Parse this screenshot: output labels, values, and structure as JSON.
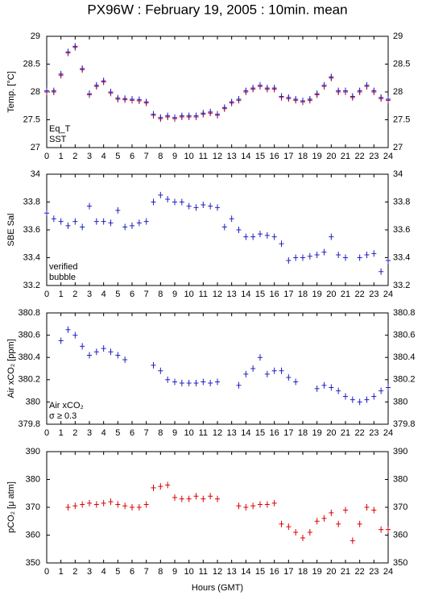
{
  "chart_data": [
    {
      "type": "scatter",
      "title": "PX96W : February 19, 2005 : 10min. mean",
      "ylabel": "Temp. [°C]",
      "x": [
        0,
        0.5,
        1,
        1.5,
        2,
        2.5,
        3,
        3.5,
        4,
        4.5,
        5,
        5.5,
        6,
        6.5,
        7,
        7.5,
        8,
        8.5,
        9,
        9.5,
        10,
        10.5,
        11,
        11.5,
        12,
        12.5,
        13,
        13.5,
        14,
        14.5,
        15,
        15.5,
        16,
        16.5,
        17,
        17.5,
        18,
        18.5,
        19,
        19.5,
        20,
        20.5,
        21,
        21.5,
        22,
        22.5,
        23,
        23.5,
        24
      ],
      "xlim": [
        0,
        24
      ],
      "xticks": [
        0,
        1,
        2,
        3,
        4,
        5,
        6,
        7,
        8,
        9,
        10,
        11,
        12,
        13,
        14,
        15,
        16,
        17,
        18,
        19,
        20,
        21,
        22,
        23,
        24
      ],
      "ylim": [
        27,
        29
      ],
      "yticks": [
        27,
        27.5,
        28,
        28.5,
        29
      ],
      "series": [
        {
          "name": "Eq_T",
          "color": "#e00000",
          "values": [
            28.0,
            28.0,
            28.3,
            28.7,
            28.8,
            28.4,
            27.95,
            28.1,
            28.18,
            27.98,
            27.87,
            27.86,
            27.85,
            27.84,
            27.8,
            27.58,
            27.52,
            27.55,
            27.52,
            27.55,
            27.55,
            27.55,
            27.6,
            27.62,
            27.58,
            27.7,
            27.8,
            27.85,
            28.0,
            28.05,
            28.1,
            28.05,
            28.05,
            27.9,
            27.88,
            27.85,
            27.82,
            27.85,
            27.95,
            28.1,
            28.25,
            28.0,
            28.0,
            27.9,
            28.0,
            28.1,
            28.0,
            27.88,
            27.85
          ]
        },
        {
          "name": "SST",
          "color": "#2020c0",
          "values": [
            28.02,
            28.02,
            28.32,
            28.72,
            28.82,
            28.42,
            27.97,
            28.12,
            28.2,
            28.0,
            27.89,
            27.88,
            27.87,
            27.86,
            27.82,
            27.6,
            27.54,
            27.57,
            27.54,
            27.57,
            27.57,
            27.57,
            27.62,
            27.64,
            27.6,
            27.72,
            27.82,
            27.87,
            28.02,
            28.07,
            28.12,
            28.07,
            28.07,
            27.92,
            27.9,
            27.87,
            27.84,
            27.87,
            27.97,
            28.12,
            28.27,
            28.02,
            28.02,
            27.92,
            28.02,
            28.12,
            28.02,
            27.9,
            27.87
          ]
        }
      ]
    },
    {
      "type": "scatter",
      "ylabel": "SBE Sal",
      "x": [
        0,
        0.5,
        1,
        1.5,
        2,
        2.5,
        3,
        3.5,
        4,
        4.5,
        5,
        5.5,
        6,
        6.5,
        7,
        7.5,
        8,
        8.5,
        9,
        9.5,
        10,
        10.5,
        11,
        11.5,
        12,
        12.5,
        13,
        13.5,
        14,
        14.5,
        15,
        15.5,
        16,
        16.5,
        17,
        17.5,
        18,
        18.5,
        19,
        19.5,
        20,
        20.5,
        21,
        21.5,
        22,
        22.5,
        23,
        23.5,
        24
      ],
      "xlim": [
        0,
        24
      ],
      "xticks": [
        0,
        1,
        2,
        3,
        4,
        5,
        6,
        7,
        8,
        9,
        10,
        11,
        12,
        13,
        14,
        15,
        16,
        17,
        18,
        19,
        20,
        21,
        22,
        23,
        24
      ],
      "ylim": [
        33.2,
        34
      ],
      "yticks": [
        33.2,
        33.4,
        33.6,
        33.8,
        34
      ],
      "series": [
        {
          "name": "verified",
          "color": "#2020c0",
          "values": [
            33.72,
            33.68,
            33.66,
            33.63,
            33.66,
            33.62,
            33.77,
            33.66,
            33.66,
            33.65,
            33.74,
            33.62,
            33.63,
            33.65,
            33.66,
            33.8,
            33.85,
            33.82,
            33.8,
            33.8,
            33.77,
            33.76,
            33.78,
            33.77,
            33.76,
            33.62,
            33.68,
            33.6,
            33.55,
            33.55,
            33.57,
            33.56,
            33.55,
            33.5,
            33.38,
            33.4,
            33.4,
            33.41,
            33.42,
            33.44,
            33.55,
            33.42,
            33.4,
            null,
            33.4,
            33.42,
            33.43,
            33.3,
            33.38
          ]
        },
        {
          "name": "bubble",
          "color": "#c020c0",
          "values": [
            null,
            null,
            null,
            null,
            null,
            null,
            null,
            null,
            null,
            null,
            null,
            null,
            null,
            null,
            null,
            null,
            null,
            null,
            null,
            null,
            null,
            null,
            null,
            null,
            null,
            null,
            null,
            null,
            null,
            null,
            null,
            null,
            null,
            null,
            null,
            null,
            null,
            null,
            null,
            null,
            null,
            null,
            null,
            null,
            null,
            null,
            null,
            null,
            null
          ]
        }
      ]
    },
    {
      "type": "scatter",
      "ylabel": "Air xCO₂ [ppm]",
      "x": [
        0,
        0.5,
        1,
        1.5,
        2,
        2.5,
        3,
        3.5,
        4,
        4.5,
        5,
        5.5,
        6,
        6.5,
        7,
        7.5,
        8,
        8.5,
        9,
        9.5,
        10,
        10.5,
        11,
        11.5,
        12,
        12.5,
        13,
        13.5,
        14,
        14.5,
        15,
        15.5,
        16,
        16.5,
        17,
        17.5,
        18,
        18.5,
        19,
        19.5,
        20,
        20.5,
        21,
        21.5,
        22,
        22.5,
        23,
        23.5,
        24
      ],
      "xlim": [
        0,
        24
      ],
      "xticks": [
        0,
        1,
        2,
        3,
        4,
        5,
        6,
        7,
        8,
        9,
        10,
        11,
        12,
        13,
        14,
        15,
        16,
        17,
        18,
        19,
        20,
        21,
        22,
        23,
        24
      ],
      "ylim": [
        379.8,
        380.8
      ],
      "yticks": [
        379.8,
        380,
        380.2,
        380.4,
        380.6,
        380.8
      ],
      "series": [
        {
          "name": "Air xCO₂",
          "color": "#2020c0",
          "values": [
            null,
            null,
            380.55,
            380.65,
            380.6,
            380.5,
            380.42,
            380.45,
            380.48,
            380.45,
            380.42,
            380.38,
            null,
            null,
            null,
            380.33,
            380.28,
            380.2,
            380.18,
            380.17,
            380.17,
            380.17,
            380.18,
            380.17,
            380.18,
            null,
            null,
            380.15,
            380.25,
            380.3,
            380.4,
            380.25,
            380.28,
            380.28,
            380.22,
            380.18,
            null,
            null,
            380.12,
            380.15,
            380.13,
            380.1,
            380.05,
            380.02,
            380.0,
            380.02,
            380.05,
            380.1,
            380.13
          ]
        },
        {
          "name": "σ ≥ 0.3",
          "color": "#c020c0",
          "values": [
            null,
            null,
            null,
            null,
            null,
            null,
            null,
            null,
            null,
            null,
            null,
            null,
            null,
            null,
            null,
            null,
            null,
            null,
            null,
            null,
            null,
            null,
            null,
            null,
            null,
            null,
            null,
            null,
            null,
            null,
            null,
            null,
            null,
            null,
            null,
            null,
            null,
            null,
            null,
            null,
            null,
            null,
            null,
            null,
            null,
            null,
            null,
            null,
            null
          ]
        }
      ]
    },
    {
      "type": "scatter",
      "ylabel": "pCO₂ [μ atm]",
      "xlabel": "Hours (GMT)",
      "x": [
        0,
        0.5,
        1,
        1.5,
        2,
        2.5,
        3,
        3.5,
        4,
        4.5,
        5,
        5.5,
        6,
        6.5,
        7,
        7.5,
        8,
        8.5,
        9,
        9.5,
        10,
        10.5,
        11,
        11.5,
        12,
        12.5,
        13,
        13.5,
        14,
        14.5,
        15,
        15.5,
        16,
        16.5,
        17,
        17.5,
        18,
        18.5,
        19,
        19.5,
        20,
        20.5,
        21,
        21.5,
        22,
        22.5,
        23,
        23.5,
        24
      ],
      "xlim": [
        0,
        24
      ],
      "xticks": [
        0,
        1,
        2,
        3,
        4,
        5,
        6,
        7,
        8,
        9,
        10,
        11,
        12,
        13,
        14,
        15,
        16,
        17,
        18,
        19,
        20,
        21,
        22,
        23,
        24
      ],
      "ylim": [
        350,
        390
      ],
      "yticks": [
        350,
        360,
        370,
        380,
        390
      ],
      "series": [
        {
          "name": "pCO₂",
          "color": "#e00000",
          "values": [
            null,
            null,
            null,
            370,
            370.5,
            371,
            371.5,
            371,
            371.5,
            372,
            371,
            370.5,
            370,
            370,
            371,
            377,
            377.5,
            378,
            373.5,
            373,
            373,
            374,
            373,
            374,
            373,
            null,
            null,
            370.5,
            370,
            370.5,
            371,
            371,
            371.5,
            364,
            363,
            361,
            359,
            361,
            365,
            366,
            368,
            364,
            369,
            358,
            364,
            370,
            369,
            362,
            362
          ]
        }
      ]
    }
  ]
}
